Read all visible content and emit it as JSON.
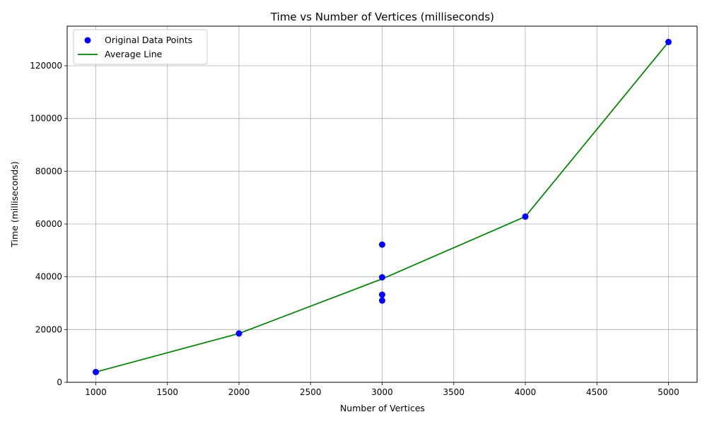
{
  "chart_data": {
    "type": "scatter",
    "title": "Time vs Number of Vertices (milliseconds)",
    "xlabel": "Number of Vertices",
    "ylabel": "Time (milliseconds)",
    "xlim": [
      800,
      5200
    ],
    "ylim": [
      0,
      135000
    ],
    "x_ticks": [
      1000,
      1500,
      2000,
      2500,
      3000,
      3500,
      4000,
      4500,
      5000
    ],
    "y_ticks": [
      0,
      20000,
      40000,
      60000,
      80000,
      100000,
      120000
    ],
    "grid": true,
    "legend_position": "top-left",
    "series": [
      {
        "name": "Original Data Points",
        "kind": "scatter",
        "color": "#0000ff",
        "points": [
          {
            "x": 1000,
            "y": 3900
          },
          {
            "x": 2000,
            "y": 18500
          },
          {
            "x": 3000,
            "y": 31000
          },
          {
            "x": 3000,
            "y": 33200
          },
          {
            "x": 3000,
            "y": 39800
          },
          {
            "x": 3000,
            "y": 52200
          },
          {
            "x": 4000,
            "y": 62800
          },
          {
            "x": 5000,
            "y": 129000
          }
        ]
      },
      {
        "name": "Average Line",
        "kind": "line",
        "color": "#008000",
        "points": [
          {
            "x": 1000,
            "y": 3900
          },
          {
            "x": 2000,
            "y": 18500
          },
          {
            "x": 3000,
            "y": 39200
          },
          {
            "x": 4000,
            "y": 62800
          },
          {
            "x": 5000,
            "y": 129000
          }
        ]
      }
    ]
  }
}
